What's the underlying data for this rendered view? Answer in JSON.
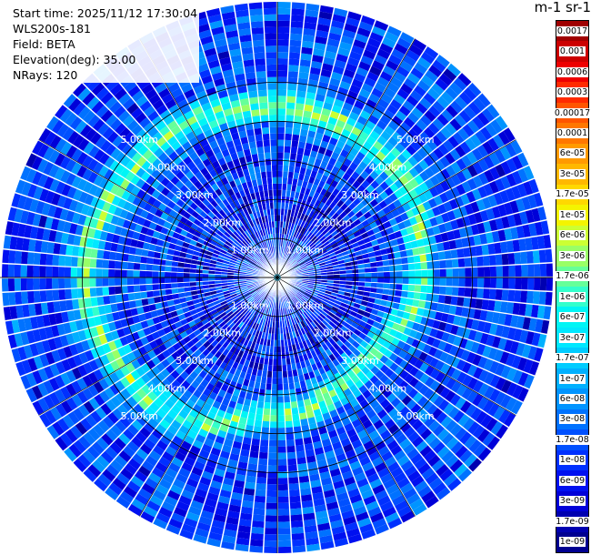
{
  "info": {
    "start_time": "Start time: 2025/11/12 17:30:04",
    "instrument": "WLS200s-181",
    "field": "Field: BETA",
    "elevation": "Elevation(deg): 35.00",
    "nrays": "NRays: 120"
  },
  "colorbar": {
    "title": "m-1 sr-1",
    "labels": [
      "0.0017",
      "0.001",
      "0.0006",
      "0.0003",
      "0.00017",
      "0.0001",
      "6e-05",
      "3e-05",
      "1.7e-05",
      "1e-05",
      "6e-06",
      "3e-06",
      "1.7e-06",
      "1e-06",
      "6e-07",
      "3e-07",
      "1.7e-07",
      "1e-07",
      "6e-08",
      "3e-08",
      "1.7e-08",
      "1e-08",
      "6e-09",
      "3e-09",
      "1.7e-09",
      "1e-09"
    ],
    "colors": [
      "#a00000",
      "#cc0000",
      "#ee0000",
      "#ff2a00",
      "#ff5500",
      "#ff7700",
      "#ff9a00",
      "#ffb800",
      "#ffd800",
      "#f4f400",
      "#ccff33",
      "#99ff66",
      "#66ff99",
      "#33ffcc",
      "#00f5f5",
      "#00e8ff",
      "#00ccff",
      "#00b0ff",
      "#0094ff",
      "#0072ff",
      "#0050ff",
      "#0030ff",
      "#0010f0",
      "#0000d8",
      "#0000b0",
      "#000090"
    ]
  },
  "chart_data": {
    "type": "ppi",
    "field": "BETA",
    "units": "m-1 sr-1",
    "nrays": 120,
    "elevation_deg": 35.0,
    "range_rings_km": [
      1,
      2,
      3,
      4,
      5
    ],
    "ring_labels": [
      "1.00km",
      "2.00km",
      "3.00km",
      "4.00km",
      "5.00km"
    ],
    "max_range_km": 6.6,
    "background_beta": 1.7e-08,
    "aerosol_band": {
      "center_range_km": [
        4.1,
        3.9,
        3.4,
        2.9,
        3.3,
        4.2,
        4.6,
        4.3
      ],
      "peak_beta": 1.7e-06
    },
    "inner_blob_radius_km": 0.3,
    "inner_blob_beta": 1.7e-07,
    "grid": true
  }
}
